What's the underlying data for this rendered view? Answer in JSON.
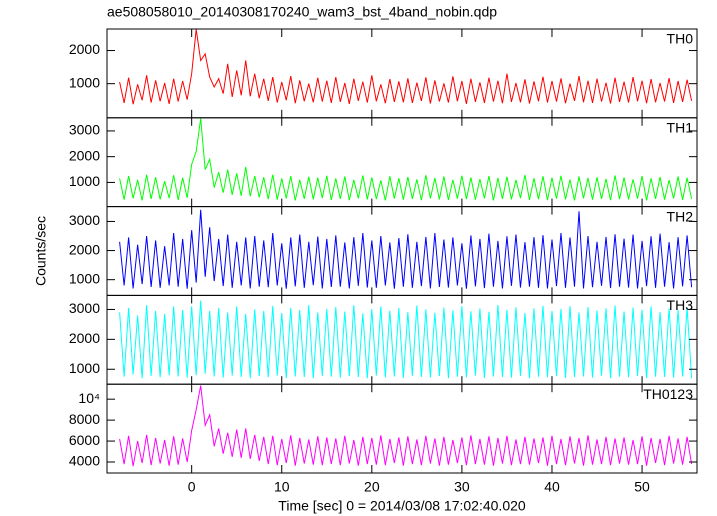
{
  "title": "ae508058010_20140308170240_wam3_bst_4band_nobin.qdp",
  "ylabel": "Counts/sec",
  "time": {
    "xlabel": "Time [sec] 0 = 2014/03/08 17:02:40.020",
    "xlim": [
      -9.4,
      56.1
    ],
    "xticks": [
      0,
      10,
      20,
      30,
      40,
      50
    ],
    "x": [
      -8,
      -7.5,
      -7,
      -6.5,
      -6,
      -5.5,
      -5,
      -4.5,
      -4,
      -3.5,
      -3,
      -2.5,
      -2,
      -1.5,
      -1,
      -0.5,
      0,
      0.5,
      1,
      1.5,
      2,
      2.5,
      3,
      3.5,
      4,
      4.5,
      5,
      5.5,
      6,
      6.5,
      7,
      7.5,
      8,
      8.5,
      9,
      9.5,
      10,
      10.5,
      11,
      11.5,
      12,
      12.5,
      13,
      13.5,
      14,
      14.5,
      15,
      15.5,
      16,
      16.5,
      17,
      17.5,
      18,
      18.5,
      19,
      19.5,
      20,
      20.5,
      21,
      21.5,
      22,
      22.5,
      23,
      23.5,
      24,
      24.5,
      25,
      25.5,
      26,
      26.5,
      27,
      27.5,
      28,
      28.5,
      29,
      29.5,
      30,
      30.5,
      31,
      31.5,
      32,
      32.5,
      33,
      33.5,
      34,
      34.5,
      35,
      35.5,
      36,
      36.5,
      37,
      37.5,
      38,
      38.5,
      39,
      39.5,
      40,
      40.5,
      41,
      41.5,
      42,
      42.5,
      43,
      43.5,
      44,
      44.5,
      45,
      45.5,
      46,
      46.5,
      47,
      47.5,
      48,
      48.5,
      49,
      49.5,
      50,
      50.5,
      51,
      51.5,
      52,
      52.5,
      53,
      53.5,
      54,
      54.5,
      55,
      55.5
    ]
  },
  "chart_data": [
    {
      "type": "line",
      "label": "TH0",
      "color": "#ff0000",
      "ylim": [
        -30,
        2650
      ],
      "yticks": [
        1000,
        2000
      ],
      "values": [
        1050,
        420,
        1180,
        380,
        980,
        500,
        1250,
        430,
        1100,
        470,
        1020,
        390,
        1150,
        460,
        1080,
        520,
        1300,
        2640,
        1700,
        1900,
        1200,
        900,
        1150,
        700,
        1600,
        600,
        1400,
        650,
        1700,
        620,
        1300,
        560,
        1150,
        480,
        1200,
        430,
        1050,
        500,
        1230,
        410,
        1100,
        470,
        1000,
        440,
        1180,
        460,
        1090,
        420,
        1200,
        450,
        1020,
        390,
        1150,
        480,
        1060,
        430,
        1250,
        470,
        980,
        410,
        1140,
        450,
        1070,
        440,
        1160,
        420,
        1030,
        480,
        1190,
        400,
        1100,
        460,
        1010,
        430,
        1220,
        470,
        1080,
        390,
        1150,
        450,
        1040,
        420,
        1180,
        460,
        1090,
        410,
        1300,
        450,
        1020,
        440,
        1130,
        400,
        1070,
        470,
        1210,
        430,
        1080,
        460,
        1160,
        410,
        1000,
        480,
        1230,
        440,
        1090,
        420,
        1150,
        460,
        1030,
        400,
        1180,
        450,
        1060,
        430,
        1200,
        470,
        1090,
        410,
        1140,
        440,
        1020,
        460,
        1170,
        420,
        1080,
        450,
        1120,
        480
      ]
    },
    {
      "type": "line",
      "label": "TH1",
      "color": "#00ff00",
      "ylim": [
        60,
        3510
      ],
      "yticks": [
        1000,
        2000,
        3000
      ],
      "values": [
        1150,
        330,
        1250,
        380,
        1100,
        300,
        1300,
        360,
        1200,
        340,
        1050,
        390,
        1280,
        320,
        1180,
        400,
        1700,
        2200,
        3480,
        1500,
        1900,
        800,
        1400,
        600,
        1500,
        520,
        1350,
        480,
        1600,
        460,
        1250,
        420,
        1200,
        350,
        1300,
        330,
        1150,
        380,
        1250,
        300,
        1100,
        360,
        1220,
        340,
        1180,
        390,
        1260,
        320,
        1150,
        360,
        1230,
        310,
        1100,
        380,
        1270,
        340,
        1190,
        350,
        1080,
        300,
        1240,
        370,
        1160,
        330,
        1210,
        360,
        1120,
        310,
        1280,
        380,
        1170,
        340,
        1230,
        320,
        1100,
        370,
        1260,
        350,
        1190,
        330,
        1130,
        380,
        1250,
        300,
        1170,
        360,
        1220,
        340,
        1100,
        390,
        1290,
        320,
        1160,
        350,
        1240,
        310,
        1180,
        370,
        1260,
        340,
        1110,
        300,
        1230,
        380,
        1170,
        330,
        1200,
        360,
        1140,
        310,
        1270,
        350,
        1190,
        340,
        1120,
        370,
        1250,
        300,
        1160,
        360,
        1210,
        330,
        1090,
        380,
        1230,
        320,
        1180,
        360
      ]
    },
    {
      "type": "line",
      "label": "TH2",
      "color": "#0000ff",
      "ylim": [
        460,
        3510
      ],
      "yticks": [
        1000,
        2000,
        3000
      ],
      "values": [
        2300,
        800,
        2450,
        700,
        2200,
        850,
        2500,
        750,
        2350,
        720,
        2150,
        800,
        2600,
        760,
        2400,
        690,
        2700,
        900,
        3400,
        1100,
        2800,
        950,
        2400,
        780,
        2550,
        720,
        2300,
        800,
        2450,
        700,
        2500,
        760,
        2350,
        740,
        2600,
        800,
        2250,
        690,
        2450,
        770,
        2550,
        720,
        2300,
        810,
        2480,
        700,
        2400,
        750,
        2520,
        760,
        2280,
        700,
        2460,
        790,
        2600,
        730,
        2350,
        720,
        2500,
        800,
        2280,
        690,
        2430,
        760,
        2560,
        720,
        2300,
        780,
        2470,
        700,
        2600,
        750,
        2380,
        730,
        2450,
        800,
        2250,
        690,
        2520,
        770,
        2400,
        710,
        2580,
        760,
        2330,
        700,
        2490,
        790,
        2550,
        730,
        2290,
        760,
        2460,
        720,
        2530,
        700,
        2380,
        780,
        2600,
        720,
        2450,
        760,
        3350,
        700,
        2500,
        740,
        2300,
        790,
        2470,
        710,
        2560,
        760,
        2410,
        730,
        2550,
        700,
        2330,
        780,
        2490,
        720,
        2580,
        760,
        2290,
        700,
        2460,
        770,
        2520,
        740
      ]
    },
    {
      "type": "line",
      "label": "TH3",
      "color": "#00ffff",
      "ylim": [
        500,
        3470
      ],
      "yticks": [
        1000,
        2000,
        3000
      ],
      "values": [
        2900,
        750,
        3050,
        820,
        2800,
        700,
        3150,
        780,
        2950,
        730,
        2850,
        800,
        3100,
        760,
        2980,
        720,
        3100,
        800,
        3300,
        850,
        2950,
        760,
        3050,
        720,
        2900,
        790,
        3100,
        740,
        2850,
        700,
        3000,
        770,
        2950,
        730,
        3120,
        790,
        2880,
        710,
        3050,
        760,
        2980,
        740,
        3150,
        700,
        2900,
        780,
        3020,
        750,
        3080,
        720,
        2930,
        770,
        3140,
        740,
        2870,
        700,
        3010,
        790,
        3100,
        730,
        2960,
        760,
        3050,
        710,
        2910,
        780,
        3130,
        740,
        3000,
        720,
        2890,
        770,
        3060,
        700,
        2970,
        750,
        3110,
        730,
        2940,
        790,
        3030,
        710,
        2920,
        760,
        3150,
        740,
        2990,
        720,
        3070,
        780,
        2880,
        700,
        3040,
        750,
        3120,
        730,
        2950,
        770,
        3020,
        710,
        3110,
        740,
        2900,
        760,
        3080,
        720,
        2970,
        790,
        3040,
        700,
        3130,
        750,
        2930,
        730,
        3060,
        770,
        2990,
        710,
        3100,
        750,
        2910,
        740,
        3040,
        720,
        2980,
        760,
        3070,
        700
      ]
    },
    {
      "type": "line",
      "label": "TH0123",
      "color": "#ff00ff",
      "ylim": [
        2950,
        11430
      ],
      "yticks": [
        4000,
        6000,
        8000,
        {
          "value": 10000,
          "label": "10⁴"
        }
      ],
      "values": [
        6200,
        3800,
        6500,
        3600,
        6000,
        3900,
        6600,
        3700,
        6300,
        3850,
        6100,
        3650,
        6450,
        3750,
        6250,
        4000,
        7000,
        9000,
        11300,
        7500,
        8500,
        5500,
        7200,
        4800,
        6800,
        4500,
        7100,
        4400,
        7200,
        4300,
        6600,
        4100,
        6400,
        3800,
        6500,
        3700,
        6200,
        3900,
        6550,
        3650,
        6300,
        3850,
        6150,
        3750,
        6450,
        3700,
        6350,
        3800,
        6250,
        3700,
        6500,
        3850,
        6100,
        3650,
        6400,
        3800,
        6300,
        3750,
        6550,
        3700,
        6200,
        3900,
        6350,
        3650,
        6450,
        3800,
        6150,
        3700,
        6500,
        3850,
        6250,
        3650,
        6400,
        3750,
        6100,
        3900,
        6350,
        3700,
        6550,
        3800,
        6200,
        3750,
        6450,
        3650,
        6300,
        3850,
        6500,
        3700,
        6150,
        3800,
        6400,
        3750,
        6250,
        3900,
        6350,
        3650,
        6500,
        3800,
        6200,
        3700,
        6450,
        3850,
        6300,
        3650,
        6550,
        3750,
        6150,
        3800,
        6400,
        3700,
        6250,
        3850,
        6350,
        3750,
        6100,
        3800,
        6450,
        3650,
        6300,
        3900,
        6200,
        3700,
        6500,
        3850,
        6250,
        3750,
        6400,
        3800
      ]
    }
  ]
}
